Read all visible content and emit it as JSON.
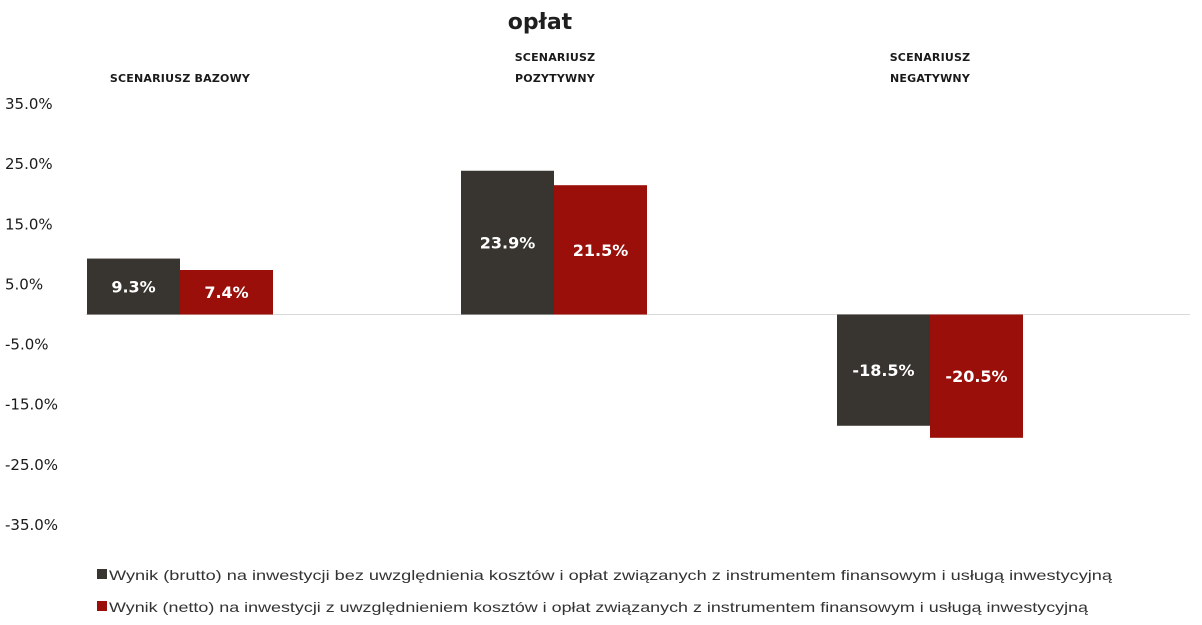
{
  "chart_data": {
    "type": "bar",
    "title_lines": [
      "",
      "opłat"
    ],
    "categories": [
      "SCENARIUSZ BAZOWY",
      "SCENARIUSZ POZYTYWNY",
      "SCENARIUSZ NEGATYWNY"
    ],
    "category_lines": [
      [
        "SCENARIUSZ BAZOWY"
      ],
      [
        "SCENARIUSZ",
        "POZYTYWNY"
      ],
      [
        "SCENARIUSZ",
        "NEGATYWNY"
      ]
    ],
    "series": [
      {
        "name": "Wynik (brutto) na inwestycji bez uwzględnienia kosztów i opłat związanych z instrumentem finansowym i usługą inwestycyjną",
        "color": "#38342f",
        "values": [
          9.3,
          23.9,
          -18.5
        ],
        "labels": [
          "9.3%",
          "23.9%",
          "-18.5%"
        ]
      },
      {
        "name": "Wynik (netto) na inwestycji z uwzględnieniem kosztów i opłat związanych z instrumentem finansowym i usługą inwestycyjną",
        "color": "#9a0f0a",
        "values": [
          7.4,
          21.5,
          -20.5
        ],
        "labels": [
          "7.4%",
          "21.5%",
          "-20.5%"
        ]
      }
    ],
    "yticks": [
      35,
      25,
      15,
      5,
      -5,
      -15,
      -25,
      -35
    ],
    "ytick_labels": [
      "35.0%",
      "25.0%",
      "15.0%",
      "5.0%",
      "-5.0%",
      "-15.0%",
      "-25.0%",
      "-35.0%"
    ],
    "ylim": [
      -35,
      35
    ],
    "grid": false,
    "legend_position": "bottom-left"
  }
}
